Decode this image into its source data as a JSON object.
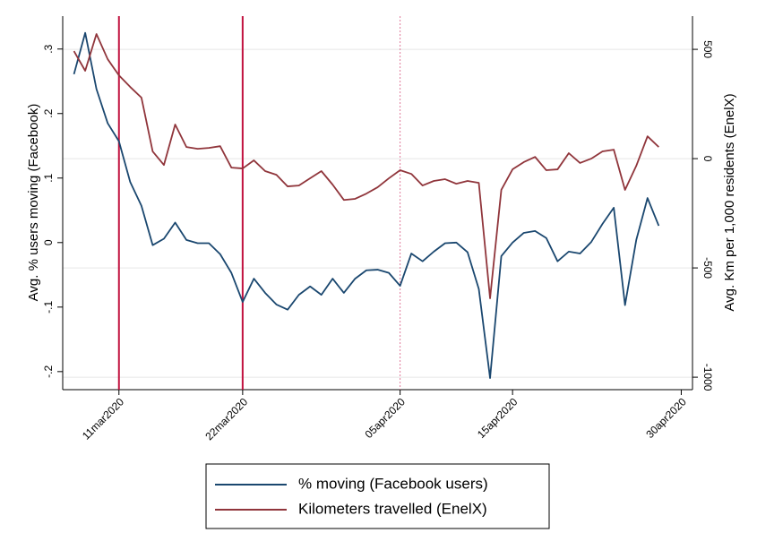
{
  "chart_data": {
    "type": "line",
    "ylabel": "Avg. % users moving (Facebook)",
    "y2label": "Avg. Km per 1,000 residents (EnelX)",
    "x": [
      "07mar2020",
      "08mar2020",
      "09mar2020",
      "10mar2020",
      "11mar2020",
      "12mar2020",
      "13mar2020",
      "14mar2020",
      "15mar2020",
      "16mar2020",
      "17mar2020",
      "18mar2020",
      "19mar2020",
      "20mar2020",
      "21mar2020",
      "22mar2020",
      "23mar2020",
      "24mar2020",
      "25mar2020",
      "26mar2020",
      "27mar2020",
      "28mar2020",
      "29mar2020",
      "30mar2020",
      "31mar2020",
      "01apr2020",
      "02apr2020",
      "03apr2020",
      "04apr2020",
      "05apr2020",
      "06apr2020",
      "07apr2020",
      "08apr2020",
      "09apr2020",
      "10apr2020",
      "11apr2020",
      "12apr2020",
      "13apr2020",
      "14apr2020",
      "15apr2020",
      "16apr2020",
      "17apr2020",
      "18apr2020",
      "19apr2020",
      "20apr2020",
      "21apr2020",
      "22apr2020",
      "23apr2020",
      "24apr2020",
      "25apr2020",
      "26apr2020",
      "27apr2020",
      "28apr2020"
    ],
    "xlim": [
      "06mar2020",
      "01may2020"
    ],
    "xticks": [
      "11mar2020",
      "22mar2020",
      "05apr2020",
      "15apr2020",
      "30apr2020"
    ],
    "ylim": [
      -0.228,
      0.351
    ],
    "yticks": [
      {
        "value": 0.3,
        "label": ".3"
      },
      {
        "value": 0.2,
        "label": ".2"
      },
      {
        "value": 0.1,
        "label": ".1"
      },
      0,
      {
        "value": -0.1,
        "label": "-.1"
      },
      {
        "value": -0.2,
        "label": "-.2"
      }
    ],
    "y2lim": [
      -1057,
      652
    ],
    "y2ticks": [
      500,
      0,
      -500,
      -1000
    ],
    "grid": true,
    "vlines": [
      {
        "x": "11mar2020",
        "color": "#c1123f",
        "style": "solid"
      },
      {
        "x": "22mar2020",
        "color": "#c1123f",
        "style": "solid"
      },
      {
        "x": "05apr2020",
        "color": "#e07a9c",
        "style": "dotted"
      }
    ],
    "legend": "bottom",
    "series": [
      {
        "name": "% moving (Facebook users)",
        "color": "#1a476f",
        "axis": "y",
        "values": [
          0.261,
          0.325,
          0.238,
          0.185,
          0.157,
          0.094,
          0.057,
          -0.004,
          0.006,
          0.031,
          0.004,
          -0.001,
          -0.001,
          -0.018,
          -0.047,
          -0.092,
          -0.056,
          -0.078,
          -0.096,
          -0.104,
          -0.081,
          -0.068,
          -0.081,
          -0.056,
          -0.078,
          -0.056,
          -0.043,
          -0.042,
          -0.047,
          -0.067,
          -0.017,
          -0.029,
          -0.014,
          -0.001,
          0,
          -0.015,
          -0.072,
          -0.21,
          -0.021,
          0,
          0.015,
          0.018,
          0.007,
          -0.029,
          -0.014,
          -0.017,
          0.001,
          0.029,
          0.054,
          -0.097,
          0.004,
          0.069,
          0.026
        ]
      },
      {
        "name": "Kilometers travelled (EnelX)",
        "color": "#90353b",
        "axis": "y2",
        "values": [
          492,
          402,
          570,
          455,
          381,
          328,
          279,
          33,
          -29,
          156,
          53,
          45,
          49,
          57,
          -41,
          -45,
          -8,
          -57,
          -74,
          -127,
          -123,
          -90,
          -57,
          -119,
          -189,
          -184,
          -160,
          -131,
          -90,
          -53,
          -70,
          -123,
          -102,
          -94,
          -115,
          -102,
          -111,
          -639,
          -143,
          -49,
          -16,
          8,
          -53,
          -49,
          25,
          -20,
          0,
          33,
          41,
          -143,
          -33,
          102,
          53
        ]
      }
    ]
  }
}
